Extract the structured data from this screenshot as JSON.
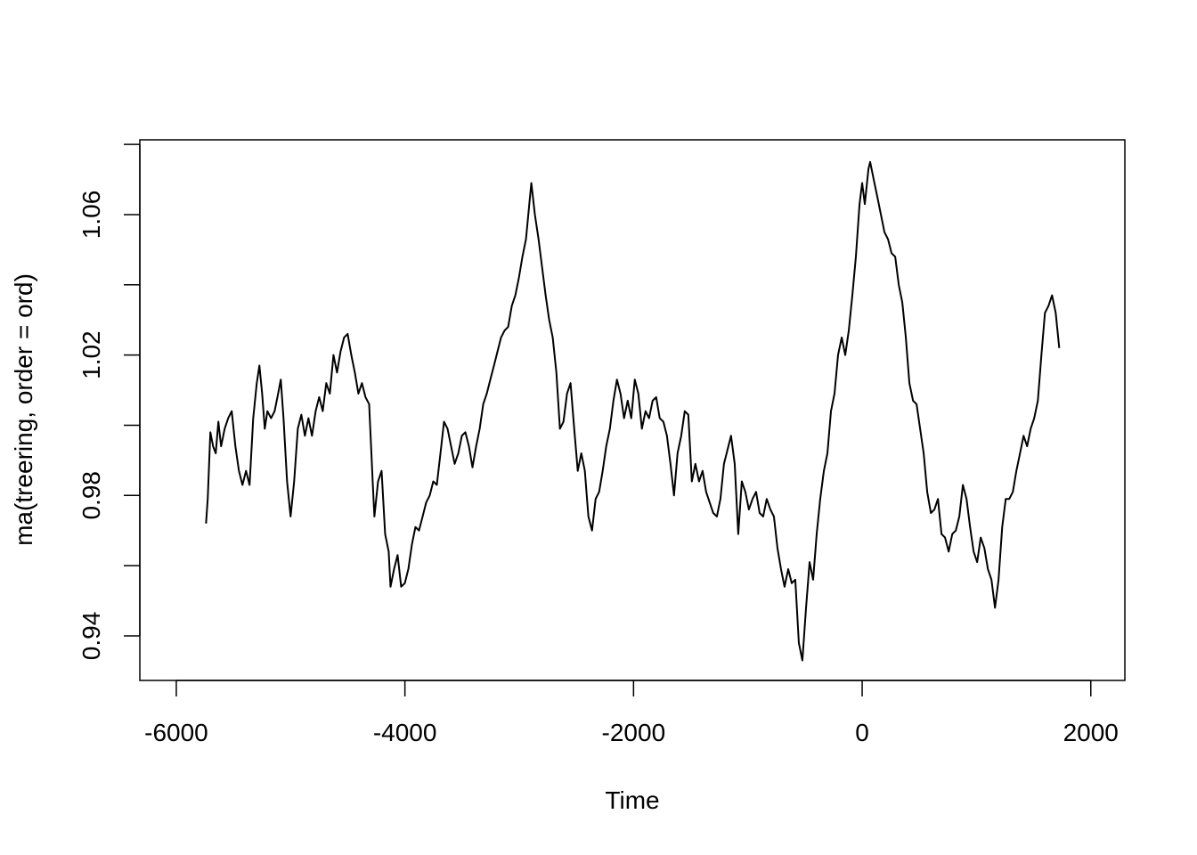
{
  "chart_data": {
    "type": "line",
    "xlabel": "Time",
    "ylabel": "ma(treering, order = ord)",
    "xlim": [
      -6319,
      2298
    ],
    "ylim": [
      0.9273,
      1.0813
    ],
    "xticks": [
      -6000,
      -4000,
      -2000,
      0,
      2000
    ],
    "yticks": [
      0.94,
      {
        "value": 0.96,
        "label": null
      },
      0.98,
      {
        "value": 1.0,
        "label": null
      },
      1.02,
      {
        "value": 1.04,
        "label": null
      },
      1.06,
      {
        "value": 1.08,
        "label": null
      }
    ],
    "series": [
      {
        "color": "#000000",
        "x": [
          -5740,
          -5725,
          -5702,
          -5678,
          -5655,
          -5632,
          -5608,
          -5577,
          -5546,
          -5515,
          -5483,
          -5452,
          -5421,
          -5390,
          -5359,
          -5327,
          -5296,
          -5273,
          -5249,
          -5226,
          -5203,
          -5171,
          -5140,
          -5109,
          -5086,
          -5062,
          -5031,
          -5000,
          -4969,
          -4937,
          -4906,
          -4875,
          -4844,
          -4813,
          -4781,
          -4750,
          -4719,
          -4688,
          -4657,
          -4625,
          -4594,
          -4563,
          -4532,
          -4501,
          -4469,
          -4438,
          -4407,
          -4376,
          -4345,
          -4313,
          -4282,
          -4267,
          -4235,
          -4204,
          -4173,
          -4142,
          -4126,
          -4095,
          -4064,
          -4033,
          -4001,
          -3970,
          -3939,
          -3908,
          -3877,
          -3845,
          -3814,
          -3783,
          -3752,
          -3721,
          -3689,
          -3658,
          -3627,
          -3596,
          -3565,
          -3533,
          -3502,
          -3471,
          -3440,
          -3409,
          -3377,
          -3346,
          -3315,
          -3284,
          -3253,
          -3221,
          -3190,
          -3159,
          -3128,
          -3097,
          -3065,
          -3034,
          -3003,
          -2972,
          -2941,
          -2909,
          -2894,
          -2863,
          -2831,
          -2800,
          -2769,
          -2738,
          -2707,
          -2675,
          -2644,
          -2613,
          -2582,
          -2551,
          -2519,
          -2488,
          -2457,
          -2426,
          -2395,
          -2363,
          -2332,
          -2301,
          -2270,
          -2239,
          -2207,
          -2176,
          -2145,
          -2114,
          -2083,
          -2051,
          -2020,
          -1989,
          -1958,
          -1927,
          -1895,
          -1864,
          -1833,
          -1802,
          -1771,
          -1739,
          -1708,
          -1677,
          -1646,
          -1615,
          -1583,
          -1552,
          -1521,
          -1490,
          -1459,
          -1427,
          -1396,
          -1365,
          -1334,
          -1303,
          -1271,
          -1240,
          -1209,
          -1178,
          -1147,
          -1115,
          -1084,
          -1053,
          -1022,
          -991,
          -959,
          -928,
          -897,
          -866,
          -835,
          -803,
          -772,
          -741,
          -710,
          -679,
          -647,
          -616,
          -585,
          -554,
          -523,
          -491,
          -460,
          -429,
          -398,
          -367,
          -335,
          -304,
          -273,
          -242,
          -211,
          -179,
          -148,
          -117,
          -86,
          -55,
          -23,
          0,
          23,
          55,
          70,
          101,
          133,
          164,
          195,
          226,
          257,
          289,
          320,
          351,
          382,
          413,
          445,
          476,
          507,
          538,
          569,
          601,
          632,
          663,
          694,
          725,
          757,
          788,
          819,
          850,
          881,
          913,
          944,
          975,
          1006,
          1037,
          1069,
          1100,
          1131,
          1162,
          1193,
          1225,
          1256,
          1287,
          1318,
          1349,
          1381,
          1412,
          1443,
          1474,
          1505,
          1537,
          1568,
          1599,
          1630,
          1661,
          1693,
          1724
        ],
        "values": [
          0.972,
          0.979,
          0.998,
          0.994,
          0.992,
          1.001,
          0.994,
          0.999,
          1.002,
          1.004,
          0.994,
          0.987,
          0.983,
          0.987,
          0.983,
          1.002,
          1.012,
          1.017,
          1.009,
          0.999,
          1.004,
          1.002,
          1.004,
          1.009,
          1.013,
          1.002,
          0.984,
          0.974,
          0.984,
          0.999,
          1.003,
          0.997,
          1.002,
          0.997,
          1.004,
          1.008,
          1.004,
          1.012,
          1.009,
          1.02,
          1.015,
          1.021,
          1.025,
          1.026,
          1.02,
          1.015,
          1.009,
          1.012,
          1.008,
          1.006,
          0.984,
          0.974,
          0.984,
          0.987,
          0.969,
          0.964,
          0.954,
          0.959,
          0.963,
          0.954,
          0.955,
          0.959,
          0.966,
          0.971,
          0.97,
          0.974,
          0.978,
          0.98,
          0.984,
          0.983,
          0.992,
          1.001,
          0.999,
          0.994,
          0.989,
          0.992,
          0.997,
          0.998,
          0.994,
          0.988,
          0.994,
          0.999,
          1.006,
          1.009,
          1.013,
          1.017,
          1.021,
          1.025,
          1.027,
          1.028,
          1.034,
          1.037,
          1.042,
          1.048,
          1.053,
          1.064,
          1.069,
          1.06,
          1.053,
          1.045,
          1.037,
          1.03,
          1.025,
          1.015,
          0.999,
          1.001,
          1.009,
          1.012,
          0.999,
          0.987,
          0.992,
          0.987,
          0.974,
          0.97,
          0.979,
          0.981,
          0.987,
          0.994,
          0.999,
          1.007,
          1.013,
          1.009,
          1.002,
          1.007,
          1.002,
          1.013,
          1.009,
          0.999,
          1.004,
          1.002,
          1.007,
          1.008,
          1.002,
          1.001,
          0.997,
          0.989,
          0.98,
          0.992,
          0.997,
          1.004,
          1.003,
          0.984,
          0.989,
          0.984,
          0.987,
          0.981,
          0.978,
          0.975,
          0.974,
          0.979,
          0.989,
          0.993,
          0.997,
          0.989,
          0.969,
          0.984,
          0.981,
          0.976,
          0.979,
          0.981,
          0.975,
          0.974,
          0.979,
          0.976,
          0.974,
          0.965,
          0.959,
          0.954,
          0.959,
          0.955,
          0.956,
          0.938,
          0.933,
          0.948,
          0.961,
          0.956,
          0.969,
          0.979,
          0.987,
          0.992,
          1.004,
          1.009,
          1.02,
          1.025,
          1.02,
          1.027,
          1.037,
          1.048,
          1.063,
          1.069,
          1.063,
          1.073,
          1.075,
          1.07,
          1.065,
          1.06,
          1.055,
          1.053,
          1.049,
          1.048,
          1.04,
          1.035,
          1.025,
          1.012,
          1.007,
          1.006,
          0.999,
          0.992,
          0.981,
          0.975,
          0.976,
          0.979,
          0.969,
          0.968,
          0.964,
          0.969,
          0.97,
          0.974,
          0.983,
          0.979,
          0.971,
          0.964,
          0.961,
          0.968,
          0.965,
          0.959,
          0.956,
          0.948,
          0.956,
          0.971,
          0.979,
          0.979,
          0.981,
          0.987,
          0.992,
          0.997,
          0.994,
          0.999,
          1.002,
          1.007,
          1.02,
          1.032,
          1.034,
          1.037,
          1.032,
          1.022
        ]
      }
    ]
  }
}
